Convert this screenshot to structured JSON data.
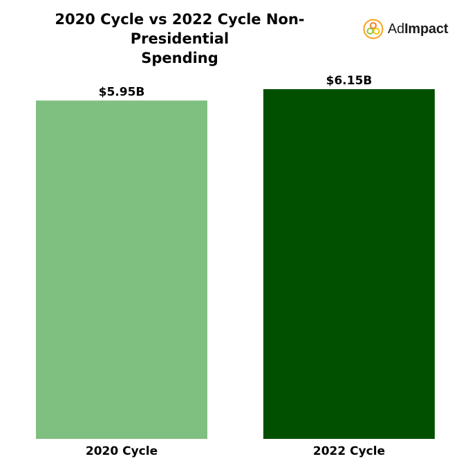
{
  "header": {
    "title_line1": "2020 Cycle vs 2022 Cycle Non-Presidential",
    "title_line2": "Spending"
  },
  "logo": {
    "icon": "adimpact-circles-icon",
    "text_regular": "Ad",
    "text_bold": "Impact"
  },
  "chart_data": {
    "type": "bar",
    "title": "2020 Cycle vs 2022 Cycle Non-Presidential Spending",
    "categories": [
      "2020 Cycle",
      "2022 Cycle"
    ],
    "values": [
      5.95,
      6.15
    ],
    "data_labels": [
      "$5.95B",
      "$6.15B"
    ],
    "colors": [
      "#7fbf7f",
      "#005000"
    ],
    "xlabel": "",
    "ylabel": "",
    "ylim": [
      0,
      6.15
    ],
    "grid": false,
    "legend": "none"
  }
}
